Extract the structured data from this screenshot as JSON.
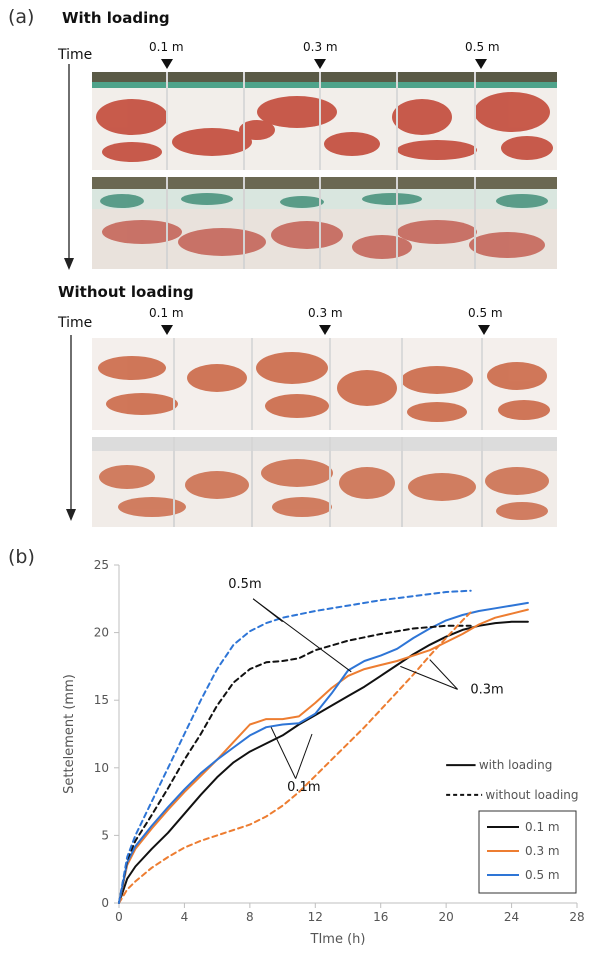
{
  "panel_a": {
    "label": "(a)",
    "with_loading": {
      "heading": "With loading",
      "time_label": "Time",
      "positions": [
        "0.1 m",
        "0.3 m",
        "0.5 m"
      ],
      "photo_count": 2
    },
    "without_loading": {
      "heading": "Without loading",
      "time_label": "Time",
      "positions": [
        "0.1 m",
        "0.3 m",
        "0.5 m"
      ],
      "photo_count": 2
    }
  },
  "panel_b": {
    "label": "(b)"
  },
  "chart_data": {
    "type": "line",
    "xlabel": "TIme (h)",
    "ylabel": "Settelement (mm)",
    "xlim": [
      0,
      28
    ],
    "ylim": [
      0,
      25
    ],
    "xticks": [
      0,
      4,
      8,
      12,
      16,
      20,
      24,
      28
    ],
    "yticks": [
      0,
      5,
      10,
      15,
      20,
      25
    ],
    "grid": false,
    "style_legend": {
      "placement": "right",
      "entries": [
        {
          "label": "with loading",
          "dash": "solid"
        },
        {
          "label": "without loading",
          "dash": "dashed"
        }
      ]
    },
    "color_legend": {
      "placement": "bottom-right",
      "entries": [
        {
          "label": "0.1 m",
          "color": "#111111"
        },
        {
          "label": "0.3 m",
          "color": "#ed7d31"
        },
        {
          "label": "0.5 m",
          "color": "#2e75d6"
        }
      ]
    },
    "annotations": [
      "0.5m",
      "0.3m",
      "0.1m"
    ],
    "series": [
      {
        "name": "0.1 m",
        "color": "#111111",
        "dash": "solid",
        "x": [
          0,
          0.5,
          1,
          2,
          3,
          4,
          5,
          6,
          7,
          8,
          9,
          10,
          11,
          12,
          13,
          14,
          15,
          16,
          17,
          18,
          19,
          20,
          21,
          22,
          23,
          24,
          25
        ],
        "y": [
          0,
          1.8,
          2.7,
          4.0,
          5.2,
          6.6,
          8.0,
          9.3,
          10.4,
          11.2,
          11.8,
          12.4,
          13.2,
          13.9,
          14.6,
          15.3,
          16.0,
          16.8,
          17.6,
          18.4,
          19.1,
          19.7,
          20.2,
          20.5,
          20.7,
          20.8,
          20.8
        ]
      },
      {
        "name": "0.3 m",
        "color": "#ed7d31",
        "dash": "solid",
        "x": [
          0,
          0.5,
          1,
          2,
          3,
          4,
          5,
          6,
          7,
          8,
          9,
          10,
          11,
          12,
          13,
          14,
          15,
          16,
          17,
          18,
          19,
          20,
          21,
          22,
          23,
          24,
          25
        ],
        "y": [
          0,
          2.8,
          4.0,
          5.5,
          6.9,
          8.2,
          9.4,
          10.6,
          11.9,
          13.2,
          13.6,
          13.6,
          13.8,
          14.8,
          15.9,
          16.8,
          17.3,
          17.6,
          17.9,
          18.3,
          18.7,
          19.3,
          19.9,
          20.6,
          21.1,
          21.4,
          21.7
        ]
      },
      {
        "name": "0.5 m",
        "color": "#2e75d6",
        "dash": "solid",
        "x": [
          0,
          0.5,
          1,
          2,
          3,
          4,
          5,
          6,
          7,
          8,
          9,
          10,
          11,
          12,
          13,
          14,
          15,
          16,
          17,
          18,
          19,
          20,
          21,
          22,
          23,
          24,
          25
        ],
        "y": [
          0,
          3.0,
          4.2,
          5.7,
          7.1,
          8.4,
          9.6,
          10.6,
          11.5,
          12.4,
          13.0,
          13.2,
          13.3,
          14.0,
          15.5,
          17.2,
          17.9,
          18.3,
          18.8,
          19.6,
          20.3,
          20.9,
          21.3,
          21.6,
          21.8,
          22.0,
          22.2
        ]
      },
      {
        "name": "0.1 m",
        "color": "#111111",
        "dash": "dashed",
        "x": [
          0,
          0.5,
          1,
          2,
          3,
          4,
          5,
          6,
          7,
          8,
          9,
          10,
          11,
          12,
          14,
          16,
          18,
          20,
          21.5
        ],
        "y": [
          0,
          3.2,
          4.6,
          6.5,
          8.5,
          10.6,
          12.5,
          14.6,
          16.3,
          17.3,
          17.8,
          17.9,
          18.1,
          18.7,
          19.4,
          19.9,
          20.3,
          20.5,
          20.5
        ]
      },
      {
        "name": "0.3 m",
        "color": "#ed7d31",
        "dash": "dashed",
        "x": [
          0,
          0.5,
          1,
          2,
          3,
          4,
          5,
          6,
          7,
          8,
          9,
          10,
          11,
          12,
          13,
          14,
          15,
          16,
          17,
          18,
          19,
          20,
          21,
          21.5
        ],
        "y": [
          0,
          1.0,
          1.6,
          2.6,
          3.4,
          4.1,
          4.6,
          5.0,
          5.4,
          5.8,
          6.4,
          7.2,
          8.2,
          9.4,
          10.6,
          11.8,
          13.0,
          14.3,
          15.6,
          16.9,
          18.3,
          19.6,
          20.9,
          21.5
        ]
      },
      {
        "name": "0.5 m",
        "color": "#2e75d6",
        "dash": "dashed",
        "x": [
          0,
          0.5,
          1,
          2,
          3,
          4,
          5,
          6,
          7,
          8,
          9,
          10,
          12,
          14,
          16,
          18,
          20,
          21.5
        ],
        "y": [
          0,
          3.4,
          5.0,
          7.5,
          10.0,
          12.5,
          15.0,
          17.3,
          19.1,
          20.1,
          20.7,
          21.1,
          21.6,
          22.0,
          22.4,
          22.7,
          23.0,
          23.1
        ]
      }
    ]
  }
}
